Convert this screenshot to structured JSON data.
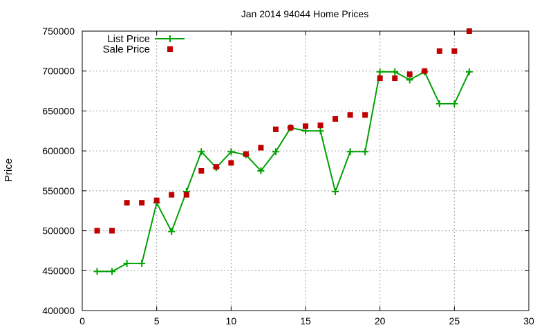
{
  "chart_data": {
    "type": "line",
    "title": "Jan 2014 94044 Home Prices",
    "xlabel": "",
    "ylabel": "Price",
    "xlim": [
      0,
      30
    ],
    "ylim": [
      400000,
      750000
    ],
    "xticks": [
      0,
      5,
      10,
      15,
      20,
      25,
      30
    ],
    "yticks": [
      400000,
      450000,
      500000,
      550000,
      600000,
      650000,
      700000,
      750000
    ],
    "grid": true,
    "legend_position": "top-left",
    "series": [
      {
        "name": "List Price",
        "style": "line+cross",
        "color": "#00a000",
        "x": [
          1,
          2,
          3,
          4,
          5,
          6,
          7,
          8,
          9,
          10,
          11,
          12,
          13,
          14,
          15,
          16,
          17,
          18,
          19,
          20,
          21,
          22,
          23,
          24,
          25,
          26
        ],
        "y": [
          449000,
          449000,
          459000,
          459000,
          535000,
          499000,
          549000,
          599000,
          579000,
          599000,
          595000,
          575000,
          599000,
          629000,
          625000,
          625000,
          549000,
          599000,
          599000,
          699000,
          699000,
          689000,
          699000,
          659000,
          659000,
          699000
        ]
      },
      {
        "name": "Sale Price",
        "style": "square",
        "color": "#c00000",
        "x": [
          1,
          2,
          3,
          4,
          5,
          6,
          7,
          8,
          9,
          10,
          11,
          12,
          13,
          14,
          15,
          16,
          17,
          18,
          19,
          20,
          21,
          22,
          23,
          24,
          25,
          26
        ],
        "y": [
          500000,
          500000,
          535000,
          535000,
          538000,
          545000,
          545000,
          575000,
          580000,
          585000,
          596000,
          604000,
          627000,
          629000,
          631000,
          632000,
          640000,
          645000,
          645000,
          691000,
          691000,
          696000,
          700000,
          725000,
          725000,
          750000
        ]
      }
    ]
  }
}
